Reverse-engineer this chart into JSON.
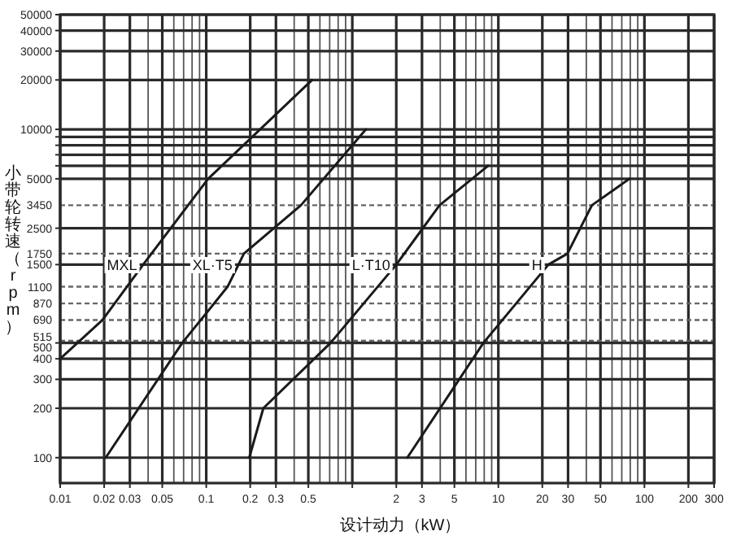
{
  "chart_data": {
    "type": "line",
    "xlabel": "设计动力（kW）",
    "ylabel": "小带轮转速（rpm）",
    "log": "xy",
    "grid": true,
    "xlim": [
      0.01,
      300
    ],
    "ylim": [
      70,
      50000
    ],
    "xticks": [
      0.01,
      0.02,
      0.03,
      0.05,
      0.1,
      0.2,
      0.3,
      0.5,
      {
        "value": 1,
        "label": null
      },
      2,
      3,
      5,
      10,
      20,
      30,
      50,
      100,
      200,
      300
    ],
    "yticks": [
      100,
      200,
      300,
      400,
      500,
      1500,
      2500,
      5000,
      {
        "value": 6000,
        "label": null
      },
      {
        "value": 7000,
        "label": null
      },
      {
        "value": 8000,
        "label": null
      },
      {
        "value": 9000,
        "label": null
      },
      10000,
      20000,
      30000,
      40000,
      50000
    ],
    "ref_lines": [
      {
        "axis": "y",
        "value": 515,
        "label": "515",
        "line_style": "dashed"
      },
      {
        "axis": "y",
        "value": 690,
        "label": "690",
        "line_style": "dashed"
      },
      {
        "axis": "y",
        "value": 870,
        "label": "870",
        "line_style": "dashed"
      },
      {
        "axis": "y",
        "value": 1100,
        "label": "1100",
        "line_style": "dashed"
      },
      {
        "axis": "y",
        "value": 1750,
        "label": "1750",
        "line_style": "dashed"
      },
      {
        "axis": "y",
        "value": 3450,
        "label": "3450",
        "line_style": "dashed"
      }
    ],
    "series": [
      {
        "name": "MXL",
        "color": "#1a1a1a",
        "x": [
          0.01,
          0.0195,
          0.037,
          0.103,
          0.53
        ],
        "values": [
          400,
          690,
          1500,
          5000,
          20000
        ]
      },
      {
        "name": "XL·T5",
        "color": "#1a1a1a",
        "x": [
          0.0205,
          0.0685,
          0.14,
          0.181,
          0.445,
          1.24
        ],
        "values": [
          100,
          500,
          1100,
          1750,
          3450,
          10000
        ]
      },
      {
        "name": "L·T10",
        "color": "#1a1a1a",
        "x": [
          0.197,
          0.246,
          0.71,
          2.0,
          3.96,
          8.5
        ],
        "values": [
          100,
          200,
          500,
          1500,
          3450,
          6000
        ]
      },
      {
        "name": "H",
        "color": "#1a1a1a",
        "x": [
          2.38,
          7.9,
          22,
          29.7,
          43.7,
          79
        ],
        "values": [
          100,
          500,
          1500,
          1750,
          3450,
          5000
        ]
      }
    ]
  }
}
